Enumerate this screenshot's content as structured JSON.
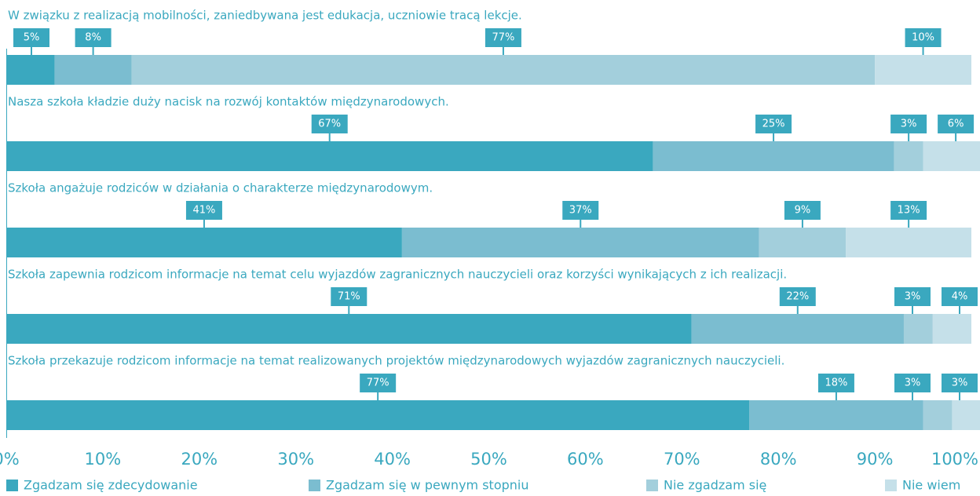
{
  "chart_data": {
    "type": "bar",
    "orientation": "horizontal",
    "stacked": true,
    "categories": [
      "W związku z realizacją mobilności, zaniedbywana jest edukacja, uczniowie tracą lekcje.",
      "Nasza szkoła kładzie duży nacisk na rozwój kontaktów międzynarodowych.",
      "Szkoła angażuje rodziców w działania o charakterze międzynarodowym.",
      "Szkoła zapewnia rodzicom informacje na temat celu wyjazdów zagranicznych nauczycieli oraz korzyści wynikających z ich realizacji.",
      "Szkoła przekazuje rodzicom informacje na temat realizowanych projektów międzynarodowych wyjazdów zagranicznych nauczycieli."
    ],
    "series": [
      {
        "name": "Zgadzam się zdecydowanie",
        "color": "#3aa8bf",
        "values": [
          5,
          67,
          41,
          71,
          77
        ],
        "value_labels": [
          "5%",
          "67%",
          "41%",
          "71%",
          "77%"
        ]
      },
      {
        "name": "Zgadzam się w pewnym stopniu",
        "color": "#7bbdd0",
        "values": [
          8,
          25,
          37,
          22,
          18
        ],
        "value_labels": [
          "8%",
          "25%",
          "37%",
          "22%",
          "18%"
        ]
      },
      {
        "name": "Nie zgadzam się",
        "color": "#a3cfdc",
        "values": [
          77,
          3,
          9,
          3,
          3
        ],
        "value_labels": [
          "77%",
          "3%",
          "9%",
          "3%",
          "3%"
        ]
      },
      {
        "name": "Nie wiem",
        "color": "#c5e0e9",
        "values": [
          10,
          6,
          13,
          4,
          3
        ],
        "value_labels": [
          "10%",
          "6%",
          "13%",
          "4%",
          "3%"
        ]
      }
    ],
    "xlim": [
      0,
      100
    ],
    "xticks": [
      {
        "value": 0,
        "label": "0%"
      },
      {
        "value": 10,
        "label": "10%"
      },
      {
        "value": 20,
        "label": "20%"
      },
      {
        "value": 30,
        "label": "30%"
      },
      {
        "value": 40,
        "label": "40%"
      },
      {
        "value": 50,
        "label": "50%"
      },
      {
        "value": 60,
        "label": "60%"
      },
      {
        "value": 70,
        "label": "70%"
      },
      {
        "value": 80,
        "label": "80%"
      },
      {
        "value": 90,
        "label": "90%"
      },
      {
        "value": 100,
        "label": "100%"
      }
    ],
    "legend": "bottom"
  }
}
